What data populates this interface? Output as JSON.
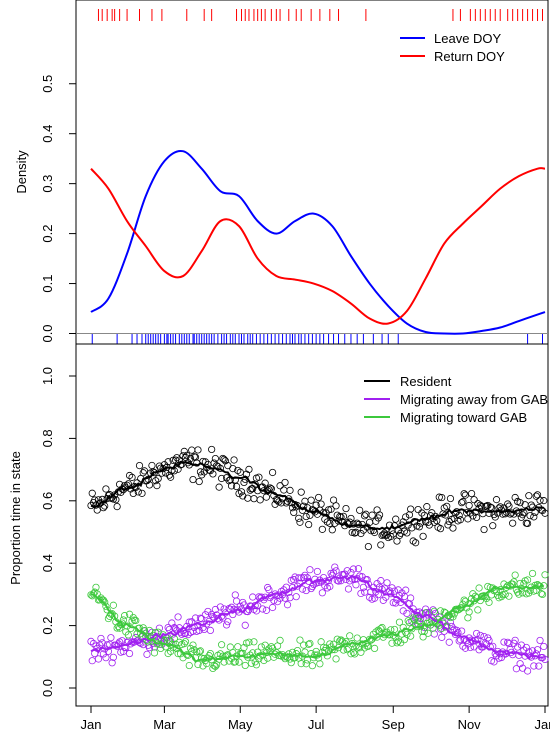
{
  "chart_data": [
    {
      "type": "line",
      "title": "",
      "xlabel": "",
      "ylabel": "Density",
      "xlim": [
        1,
        366
      ],
      "ylim": [
        0,
        0.5
      ],
      "yticks": [
        0.0,
        0.1,
        0.2,
        0.3,
        0.4,
        0.5
      ],
      "ytick_labels": [
        "0.0",
        "0.1",
        "0.2",
        "0.3",
        "0.4",
        "0.5"
      ],
      "legend_position": "top-right",
      "grid": false,
      "series": [
        {
          "name": "Leave DOY",
          "color": "#0000ff",
          "x": [
            1,
            15,
            30,
            45,
            60,
            75,
            90,
            105,
            120,
            135,
            150,
            165,
            180,
            195,
            210,
            225,
            240,
            255,
            270,
            285,
            300,
            315,
            330,
            345,
            360,
            366
          ],
          "y": [
            0.043,
            0.07,
            0.16,
            0.275,
            0.345,
            0.365,
            0.33,
            0.285,
            0.275,
            0.225,
            0.2,
            0.225,
            0.24,
            0.215,
            0.155,
            0.1,
            0.055,
            0.02,
            0.003,
            0.0,
            0.0,
            0.005,
            0.012,
            0.025,
            0.038,
            0.043
          ]
        },
        {
          "name": "Return DOY",
          "color": "#ff0000",
          "x": [
            1,
            15,
            30,
            45,
            60,
            75,
            90,
            105,
            120,
            135,
            150,
            165,
            180,
            195,
            210,
            225,
            240,
            255,
            270,
            285,
            300,
            315,
            330,
            345,
            360,
            366
          ],
          "y": [
            0.33,
            0.29,
            0.225,
            0.175,
            0.125,
            0.115,
            0.165,
            0.225,
            0.215,
            0.15,
            0.115,
            0.108,
            0.1,
            0.085,
            0.06,
            0.03,
            0.02,
            0.045,
            0.11,
            0.18,
            0.22,
            0.255,
            0.29,
            0.315,
            0.33,
            0.33
          ]
        }
      ],
      "rug_leave": [
        2,
        22,
        34,
        38,
        42,
        45,
        47,
        49,
        51,
        53,
        55,
        57,
        60,
        62,
        63,
        65,
        67,
        69,
        72,
        74,
        76,
        78,
        80,
        83,
        84,
        86,
        88,
        90,
        92,
        94,
        96,
        98,
        100,
        103,
        106,
        108,
        110,
        113,
        115,
        117,
        120,
        122,
        124,
        127,
        129,
        131,
        134,
        137,
        140,
        143,
        146,
        149,
        152,
        155,
        158,
        161,
        163,
        165,
        168,
        170,
        173,
        176,
        179,
        182,
        185,
        188,
        192,
        196,
        200,
        205,
        210,
        215,
        220,
        228,
        235,
        240,
        248,
        352,
        364
      ],
      "rug_return": [
        7,
        10,
        14,
        18,
        20,
        24,
        30,
        40,
        50,
        58,
        78,
        92,
        98,
        118,
        122,
        125,
        128,
        132,
        135,
        138,
        141,
        146,
        150,
        153,
        160,
        166,
        170,
        178,
        185,
        193,
        200,
        222,
        292,
        298,
        306,
        310,
        314,
        318,
        322,
        326,
        330,
        336,
        340,
        344,
        348,
        352,
        356,
        360,
        364
      ]
    },
    {
      "type": "scatter",
      "title": "",
      "xlabel": "",
      "ylabel": "Proportion time in state",
      "xlim": [
        1,
        366
      ],
      "ylim": [
        0,
        1
      ],
      "yticks": [
        0.0,
        0.2,
        0.4,
        0.6,
        0.8,
        1.0
      ],
      "ytick_labels": [
        "0.0",
        "0.2",
        "0.4",
        "0.6",
        "0.8",
        "1.0"
      ],
      "x_ticks": [
        1,
        60,
        121,
        182,
        244,
        305,
        366
      ],
      "x_tick_labels": [
        "Jan",
        "Mar",
        "May",
        "Jul",
        "Sep",
        "Nov",
        "Jan"
      ],
      "legend_position": "top-right",
      "grid": false,
      "series": [
        {
          "name": "Resident",
          "color": "#000000",
          "smooth_x": [
            1,
            30,
            60,
            75,
            90,
            120,
            150,
            180,
            210,
            240,
            270,
            300,
            330,
            366
          ],
          "smooth_y": [
            0.58,
            0.64,
            0.7,
            0.72,
            0.715,
            0.675,
            0.62,
            0.565,
            0.52,
            0.51,
            0.545,
            0.57,
            0.565,
            0.58
          ],
          "noise": 0.045
        },
        {
          "name": "Migrating away from GAB",
          "color": "#a020f0",
          "smooth_x": [
            1,
            30,
            60,
            90,
            120,
            150,
            180,
            210,
            240,
            270,
            300,
            330,
            366
          ],
          "smooth_y": [
            0.12,
            0.14,
            0.17,
            0.205,
            0.25,
            0.3,
            0.345,
            0.355,
            0.3,
            0.23,
            0.165,
            0.115,
            0.1
          ],
          "noise": 0.035
        },
        {
          "name": "Migrating toward GAB",
          "color": "#3cc83c",
          "smooth_x": [
            1,
            30,
            60,
            90,
            120,
            150,
            180,
            210,
            240,
            270,
            300,
            330,
            366
          ],
          "smooth_y": [
            0.3,
            0.2,
            0.14,
            0.09,
            0.1,
            0.11,
            0.1,
            0.14,
            0.17,
            0.2,
            0.26,
            0.32,
            0.325
          ],
          "noise": 0.035
        }
      ]
    }
  ]
}
